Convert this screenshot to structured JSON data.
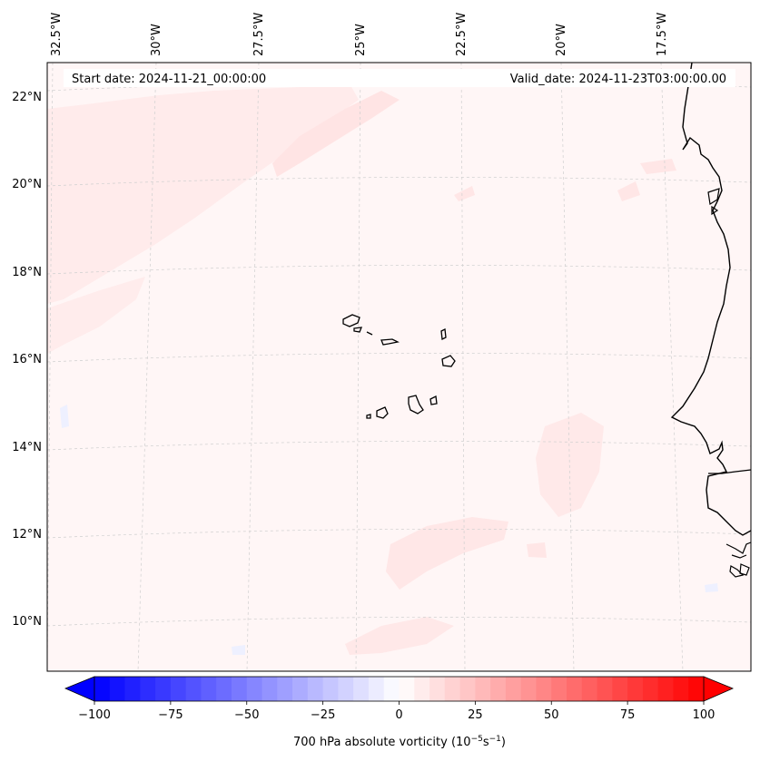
{
  "header": {
    "start_date": "Start date: 2024-11-21_00:00:00",
    "valid_date": "Valid_date: 2024-11-23T03:00:00.00"
  },
  "axes": {
    "lon_labels": [
      "32.5°W",
      "30°W",
      "27.5°W",
      "25°W",
      "22.5°W",
      "20°W",
      "17.5°W"
    ],
    "lat_labels": [
      "22°N",
      "20°N",
      "18°N",
      "16°N",
      "14°N",
      "12°N",
      "10°N"
    ]
  },
  "colorbar": {
    "ticks": [
      "−100",
      "−75",
      "−50",
      "−25",
      "0",
      "25",
      "50",
      "75",
      "100"
    ],
    "label": "700 hPa absolute vorticity (10",
    "label_exp1": "−5",
    "label_mid": "s",
    "label_exp2": "−1",
    "label_end": ")",
    "vmin": -100,
    "vmax": 100,
    "levels": 40,
    "colors": {
      "negative": "#0000ff",
      "zero": "#ffffff",
      "positive": "#ff0000"
    }
  },
  "colors": {
    "background_field": "#fff6f6",
    "light_positive": "#ffe6e6",
    "light_negative": "#eef0ff",
    "coastline": "#000000",
    "gridline": "#c8c8c8"
  }
}
